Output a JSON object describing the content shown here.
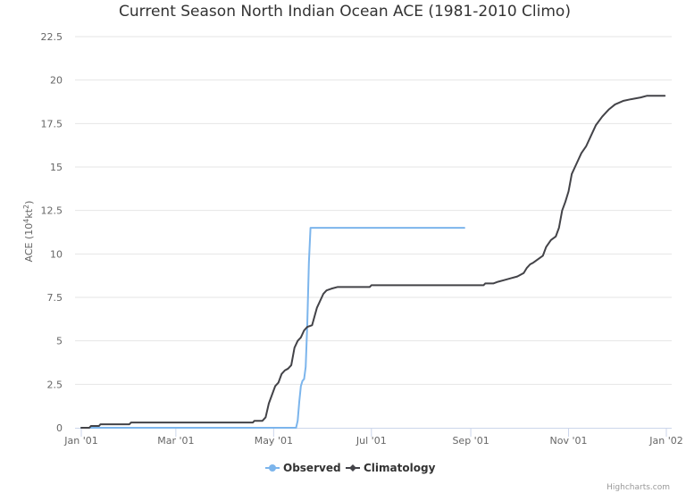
{
  "chart_data": {
    "type": "line",
    "title": "Current Season North Indian Ocean ACE (1981-2010 Climo)",
    "ylabel_main": "ACE (10",
    "ylabel_sup": "4",
    "ylabel_unit": "kt",
    "ylabel_sup2": "2",
    "ylabel_end": ")",
    "xlabel": "",
    "ylim": [
      0,
      22.5
    ],
    "xlim": [
      "2001-01-01",
      "2002-01-01"
    ],
    "yticks": [
      "0",
      "2.5",
      "5",
      "7.5",
      "10",
      "12.5",
      "15",
      "17.5",
      "20",
      "22.5"
    ],
    "xticks": [
      {
        "date": "2001-01-01",
        "label": "Jan '01"
      },
      {
        "date": "2001-03-01",
        "label": "Mar '01"
      },
      {
        "date": "2001-05-01",
        "label": "May '01"
      },
      {
        "date": "2001-07-01",
        "label": "Jul '01"
      },
      {
        "date": "2001-09-01",
        "label": "Sep '01"
      },
      {
        "date": "2001-11-01",
        "label": "Nov '01"
      },
      {
        "date": "2002-01-01",
        "label": "Jan '02"
      }
    ],
    "legend_position": "bottom-center",
    "grid": true,
    "series": [
      {
        "name": "Observed",
        "color": "#7cb5ec",
        "points": [
          [
            "2001-01-01",
            0
          ],
          [
            "2001-05-15",
            0
          ],
          [
            "2001-05-16",
            0.4
          ],
          [
            "2001-05-17",
            1.5
          ],
          [
            "2001-05-18",
            2.4
          ],
          [
            "2001-05-19",
            2.7
          ],
          [
            "2001-05-20",
            2.8
          ],
          [
            "2001-05-21",
            3.5
          ],
          [
            "2001-05-22",
            6.0
          ],
          [
            "2001-05-23",
            9.5
          ],
          [
            "2001-05-24",
            11.5
          ],
          [
            "2001-08-28",
            11.5
          ]
        ]
      },
      {
        "name": "Climatology",
        "color": "#434348",
        "points": [
          [
            "2001-01-01",
            0
          ],
          [
            "2001-01-06",
            0
          ],
          [
            "2001-01-07",
            0.1
          ],
          [
            "2001-01-12",
            0.1
          ],
          [
            "2001-01-13",
            0.2
          ],
          [
            "2001-01-31",
            0.2
          ],
          [
            "2001-02-01",
            0.3
          ],
          [
            "2001-04-18",
            0.3
          ],
          [
            "2001-04-19",
            0.4
          ],
          [
            "2001-04-24",
            0.4
          ],
          [
            "2001-04-26",
            0.6
          ],
          [
            "2001-04-28",
            1.4
          ],
          [
            "2001-04-30",
            1.9
          ],
          [
            "2001-05-02",
            2.4
          ],
          [
            "2001-05-04",
            2.6
          ],
          [
            "2001-05-06",
            3.1
          ],
          [
            "2001-05-08",
            3.3
          ],
          [
            "2001-05-10",
            3.4
          ],
          [
            "2001-05-12",
            3.6
          ],
          [
            "2001-05-14",
            4.6
          ],
          [
            "2001-05-16",
            5.0
          ],
          [
            "2001-05-18",
            5.2
          ],
          [
            "2001-05-20",
            5.6
          ],
          [
            "2001-05-22",
            5.8
          ],
          [
            "2001-05-25",
            5.9
          ],
          [
            "2001-05-28",
            6.9
          ],
          [
            "2001-06-01",
            7.7
          ],
          [
            "2001-06-03",
            7.9
          ],
          [
            "2001-06-06",
            8.0
          ],
          [
            "2001-06-10",
            8.1
          ],
          [
            "2001-06-30",
            8.1
          ],
          [
            "2001-07-01",
            8.2
          ],
          [
            "2001-08-31",
            8.2
          ],
          [
            "2001-09-09",
            8.2
          ],
          [
            "2001-09-10",
            8.3
          ],
          [
            "2001-09-15",
            8.3
          ],
          [
            "2001-09-18",
            8.4
          ],
          [
            "2001-09-22",
            8.5
          ],
          [
            "2001-09-26",
            8.6
          ],
          [
            "2001-09-30",
            8.7
          ],
          [
            "2001-10-04",
            8.9
          ],
          [
            "2001-10-06",
            9.2
          ],
          [
            "2001-10-08",
            9.4
          ],
          [
            "2001-10-10",
            9.5
          ],
          [
            "2001-10-13",
            9.7
          ],
          [
            "2001-10-16",
            9.9
          ],
          [
            "2001-10-18",
            10.4
          ],
          [
            "2001-10-21",
            10.8
          ],
          [
            "2001-10-24",
            11.0
          ],
          [
            "2001-10-26",
            11.5
          ],
          [
            "2001-10-28",
            12.5
          ],
          [
            "2001-10-30",
            13.0
          ],
          [
            "2001-11-01",
            13.6
          ],
          [
            "2001-11-03",
            14.6
          ],
          [
            "2001-11-06",
            15.2
          ],
          [
            "2001-11-09",
            15.8
          ],
          [
            "2001-11-12",
            16.2
          ],
          [
            "2001-11-15",
            16.8
          ],
          [
            "2001-11-18",
            17.4
          ],
          [
            "2001-11-22",
            17.9
          ],
          [
            "2001-11-26",
            18.3
          ],
          [
            "2001-11-30",
            18.6
          ],
          [
            "2001-12-05",
            18.8
          ],
          [
            "2001-12-10",
            18.9
          ],
          [
            "2001-12-16",
            19.0
          ],
          [
            "2001-12-20",
            19.1
          ],
          [
            "2001-12-31",
            19.1
          ]
        ]
      }
    ]
  },
  "credits": "Highcharts.com"
}
